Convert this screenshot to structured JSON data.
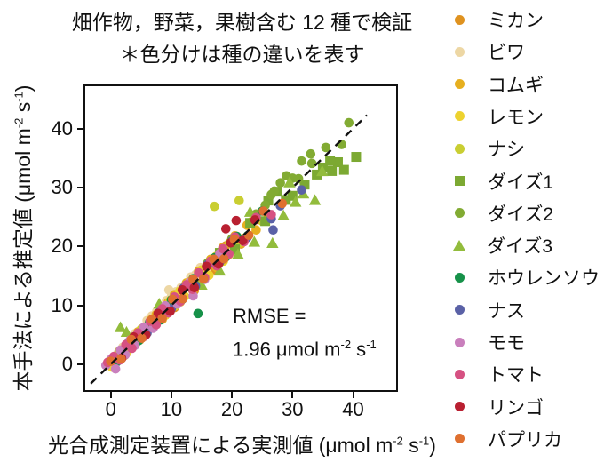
{
  "title": {
    "line1": "畑作物，野菜，果樹含む 12 種で検証",
    "line2": "＊色分けは種の違いを表す"
  },
  "axes": {
    "x_label": {
      "prefix": "光合成測定装置による実測値 (μmol m",
      "sup1": "-2",
      "mid": " s",
      "sup2": "-1",
      "suffix": ")"
    },
    "y_label": {
      "prefix": "本手法による推定値 (μmol m",
      "sup1": "-2",
      "mid": " s",
      "sup2": "-1",
      "suffix": ")"
    }
  },
  "annotation": {
    "line1": "RMSE =",
    "line2_prefix": "1.96 μmol m",
    "sup1": "-2",
    "mid": " s",
    "sup2": "-1"
  },
  "chart_data": {
    "type": "scatter",
    "title": "畑作物，野菜，果樹含む 12 種で検証 ＊色分けは種の違いを表す",
    "xlabel": "光合成測定装置による実測値 (μmol m⁻² s⁻¹)",
    "ylabel": "本手法による推定値 (μmol m⁻² s⁻¹)",
    "rmse_text": "RMSE = 1.96 μmol m⁻² s⁻¹",
    "xlim": [
      -4.5,
      47.4
    ],
    "ylim": [
      -4.7,
      47.5
    ],
    "xticks": [
      0,
      10,
      20,
      30,
      40
    ],
    "yticks": [
      0,
      10,
      20,
      30,
      40
    ],
    "grid": false,
    "legend_position": "right",
    "identity_line": {
      "from": [
        -3.3,
        -3.3
      ],
      "to": [
        42.3,
        42.3
      ],
      "style": "dashed",
      "color": "#111111"
    },
    "series": [
      {
        "key": "mikan",
        "name": "ミカン",
        "marker": "circle",
        "color": "#DF921F",
        "points": [
          [
            0.5,
            0.2
          ],
          [
            1.2,
            1.8
          ],
          [
            2.3,
            1.5
          ],
          [
            3.5,
            4.2
          ],
          [
            4.8,
            4.1
          ],
          [
            6.2,
            7.0
          ],
          [
            7.5,
            6.8
          ],
          [
            9.0,
            9.8
          ],
          [
            10.5,
            9.6
          ],
          [
            12.0,
            13.1
          ],
          [
            13.8,
            12.5
          ],
          [
            15.5,
            16.2
          ],
          [
            17.2,
            16.0
          ],
          [
            19.0,
            20.1
          ],
          [
            21.5,
            20.4
          ],
          [
            24.0,
            24.8
          ]
        ]
      },
      {
        "key": "biwa",
        "name": "ビワ",
        "marker": "circle",
        "color": "#EDD7A4",
        "points": [
          [
            1.0,
            1.6
          ],
          [
            2.0,
            2.9
          ],
          [
            3.0,
            3.4
          ],
          [
            4.0,
            5.2
          ],
          [
            5.0,
            5.8
          ],
          [
            6.0,
            7.4
          ],
          [
            6.8,
            8.2
          ],
          [
            7.6,
            9.0
          ],
          [
            8.4,
            9.6
          ],
          [
            9.2,
            10.8
          ],
          [
            10.0,
            11.5
          ],
          [
            10.8,
            12.3
          ],
          [
            11.6,
            13.0
          ],
          [
            12.4,
            13.6
          ],
          [
            13.2,
            14.8
          ],
          [
            14.0,
            15.2
          ],
          [
            14.8,
            16.4
          ],
          [
            15.6,
            16.0
          ],
          [
            9.6,
            12.6
          ],
          [
            11.7,
            11.5
          ]
        ]
      },
      {
        "key": "komugi",
        "name": "コムギ",
        "marker": "circle",
        "color": "#E6AF1F",
        "points": [
          [
            1.5,
            0.8
          ],
          [
            2.5,
            2.0
          ],
          [
            3.5,
            3.0
          ],
          [
            4.5,
            5.5
          ],
          [
            5.5,
            4.8
          ],
          [
            6.5,
            7.2
          ],
          [
            7.5,
            8.4
          ],
          [
            8.5,
            7.6
          ],
          [
            9.5,
            10.5
          ],
          [
            10.5,
            11.8
          ],
          [
            11.5,
            10.6
          ],
          [
            12.5,
            13.8
          ],
          [
            13.5,
            12.6
          ],
          [
            14.5,
            15.8
          ],
          [
            15.5,
            14.5
          ],
          [
            16.5,
            17.8
          ],
          [
            17.5,
            16.4
          ],
          [
            18.5,
            19.8
          ],
          [
            19.5,
            18.6
          ],
          [
            20.5,
            21.8
          ],
          [
            21.5,
            20.5
          ],
          [
            22.5,
            23.6
          ],
          [
            24.0,
            22.8
          ],
          [
            26.0,
            25.2
          ]
        ]
      },
      {
        "key": "lemon",
        "name": "レモン",
        "marker": "circle",
        "color": "#EDD22F",
        "points": [
          [
            0.2,
            -0.5
          ],
          [
            1.0,
            0.6
          ],
          [
            1.8,
            2.4
          ],
          [
            2.6,
            1.9
          ],
          [
            3.4,
            4.0
          ],
          [
            4.2,
            3.6
          ],
          [
            5.0,
            5.9
          ],
          [
            5.8,
            5.2
          ],
          [
            6.6,
            7.5
          ],
          [
            7.4,
            6.8
          ],
          [
            8.2,
            9.0
          ],
          [
            9.0,
            8.3
          ],
          [
            9.8,
            10.8
          ],
          [
            10.6,
            9.9
          ],
          [
            11.4,
            12.4
          ],
          [
            12.2,
            11.5
          ],
          [
            13.0,
            14.0
          ],
          [
            14.0,
            13.2
          ],
          [
            15.0,
            16.0
          ],
          [
            16.2,
            15.1
          ],
          [
            17.4,
            18.3
          ],
          [
            18.6,
            17.5
          ],
          [
            20.0,
            20.9
          ],
          [
            22.0,
            21.4
          ]
        ]
      },
      {
        "key": "nashi",
        "name": "ナシ",
        "marker": "circle",
        "color": "#C9CE32",
        "points": [
          [
            1.4,
            2.2
          ],
          [
            3.2,
            2.7
          ],
          [
            5.1,
            6.0
          ],
          [
            7.0,
            6.3
          ],
          [
            8.8,
            9.7
          ],
          [
            10.6,
            10.0
          ],
          [
            12.4,
            13.4
          ],
          [
            14.2,
            13.6
          ],
          [
            16.0,
            17.0
          ],
          [
            17.8,
            17.1
          ],
          [
            19.6,
            20.6
          ],
          [
            21.4,
            20.7
          ],
          [
            23.2,
            24.2
          ],
          [
            25.0,
            24.3
          ],
          [
            17.1,
            26.8
          ],
          [
            21.2,
            27.8
          ]
        ]
      },
      {
        "key": "daizu1",
        "name": "ダイズ1",
        "marker": "square",
        "color": "#7CA932",
        "points": [
          [
            18.0,
            18.9
          ],
          [
            20.5,
            19.5
          ],
          [
            23.0,
            24.0
          ],
          [
            25.5,
            24.3
          ],
          [
            26.0,
            27.8
          ],
          [
            27.5,
            29.3
          ],
          [
            28.9,
            27.9
          ],
          [
            30.0,
            28.6
          ],
          [
            32.0,
            30.5
          ],
          [
            34.0,
            32.2
          ],
          [
            35.0,
            33.4
          ],
          [
            36.5,
            32.8
          ],
          [
            37.5,
            34.3
          ],
          [
            38.5,
            33.0
          ],
          [
            40.5,
            35.2
          ],
          [
            36.2,
            34.5
          ]
        ]
      },
      {
        "key": "daizu2",
        "name": "ダイズ2",
        "marker": "circle",
        "color": "#82AB33",
        "points": [
          [
            12.0,
            12.8
          ],
          [
            14.0,
            13.5
          ],
          [
            16.0,
            17.2
          ],
          [
            18.0,
            17.3
          ],
          [
            20.0,
            21.3
          ],
          [
            22.0,
            21.2
          ],
          [
            24.0,
            25.5
          ],
          [
            25.5,
            27.0
          ],
          [
            27.0,
            29.4
          ],
          [
            28.0,
            30.8
          ],
          [
            29.0,
            32.0
          ],
          [
            30.0,
            31.6
          ],
          [
            31.0,
            31.5
          ],
          [
            31.5,
            34.5
          ],
          [
            33.0,
            35.7
          ],
          [
            33.2,
            34.1
          ],
          [
            35.5,
            36.8
          ],
          [
            38.1,
            37.3
          ],
          [
            39.3,
            41.0
          ],
          [
            26.5,
            28.8
          ]
        ]
      },
      {
        "key": "daizu3",
        "name": "ダイズ3",
        "marker": "triangle",
        "color": "#92BC3C",
        "points": [
          [
            1.6,
            6.2
          ],
          [
            2.6,
            5.4
          ],
          [
            8.0,
            10.2
          ],
          [
            15.0,
            13.4
          ],
          [
            18.0,
            15.8
          ],
          [
            21.0,
            18.6
          ],
          [
            23.7,
            20.7
          ],
          [
            26.7,
            20.5
          ],
          [
            28.5,
            25.2
          ],
          [
            30.5,
            27.5
          ],
          [
            33.7,
            27.8
          ],
          [
            34.9,
            32.7
          ],
          [
            29.5,
            30.8
          ],
          [
            31.8,
            28.9
          ],
          [
            23.0,
            25.8
          ]
        ]
      },
      {
        "key": "hourensou",
        "name": "ホウレンソウ",
        "marker": "circle",
        "color": "#169149",
        "points": [
          [
            1.0,
            0.4
          ],
          [
            2.8,
            3.5
          ],
          [
            4.6,
            4.0
          ],
          [
            6.4,
            7.1
          ],
          [
            8.2,
            7.5
          ],
          [
            10.0,
            10.9
          ],
          [
            11.8,
            11.0
          ],
          [
            13.6,
            14.5
          ],
          [
            15.4,
            14.6
          ],
          [
            17.2,
            18.1
          ],
          [
            19.0,
            18.2
          ],
          [
            20.8,
            21.7
          ],
          [
            22.6,
            21.8
          ],
          [
            14.4,
            8.6
          ],
          [
            25.0,
            26.0
          ]
        ]
      },
      {
        "key": "nasu",
        "name": "ナス",
        "marker": "circle",
        "color": "#5A61A6",
        "points": [
          [
            0.3,
            0.9
          ],
          [
            2.0,
            1.4
          ],
          [
            4.0,
            4.7
          ],
          [
            6.0,
            5.3
          ],
          [
            8.0,
            8.8
          ],
          [
            10.0,
            9.4
          ],
          [
            12.0,
            12.9
          ],
          [
            14.0,
            13.3
          ],
          [
            16.0,
            16.9
          ],
          [
            18.0,
            17.4
          ],
          [
            20.0,
            20.9
          ],
          [
            22.5,
            21.5
          ],
          [
            26.5,
            24.7
          ],
          [
            26.8,
            22.8
          ],
          [
            28.0,
            26.9
          ],
          [
            31.5,
            29.6
          ]
        ]
      },
      {
        "key": "momo",
        "name": "モモ",
        "marker": "circle",
        "color": "#C97FBC",
        "points": [
          [
            -0.8,
            -0.2
          ],
          [
            0.0,
            0.8
          ],
          [
            0.8,
            -0.8
          ],
          [
            1.6,
            2.4
          ],
          [
            2.4,
            1.6
          ],
          [
            3.2,
            4.1
          ],
          [
            4.0,
            3.2
          ],
          [
            5.5,
            6.3
          ],
          [
            7.0,
            6.1
          ],
          [
            9.0,
            9.9
          ],
          [
            11.0,
            10.2
          ],
          [
            13.0,
            13.9
          ],
          [
            13.6,
            11.6
          ],
          [
            15.5,
            14.4
          ],
          [
            18.0,
            18.8
          ]
        ]
      },
      {
        "key": "tomato",
        "name": "トマト",
        "marker": "circle",
        "color": "#D65182",
        "points": [
          [
            -0.5,
            0.3
          ],
          [
            0.5,
            1.3
          ],
          [
            1.5,
            0.7
          ],
          [
            2.5,
            3.3
          ],
          [
            3.5,
            2.7
          ],
          [
            4.5,
            5.3
          ],
          [
            5.5,
            4.7
          ],
          [
            6.5,
            7.3
          ],
          [
            7.5,
            6.7
          ],
          [
            8.5,
            9.4
          ],
          [
            9.5,
            8.7
          ],
          [
            10.5,
            11.4
          ],
          [
            11.5,
            10.7
          ],
          [
            12.5,
            13.5
          ],
          [
            13.5,
            12.7
          ],
          [
            14.5,
            15.5
          ],
          [
            15.5,
            14.7
          ],
          [
            16.5,
            17.5
          ],
          [
            17.5,
            16.7
          ],
          [
            18.5,
            19.6
          ],
          [
            19.5,
            18.7
          ],
          [
            20.5,
            21.6
          ],
          [
            22.0,
            20.8
          ],
          [
            24.0,
            24.9
          ],
          [
            26.5,
            25.4
          ]
        ]
      },
      {
        "key": "ringo",
        "name": "リンゴ",
        "marker": "circle",
        "color": "#B92031",
        "points": [
          [
            1.8,
            1.0
          ],
          [
            3.8,
            4.6
          ],
          [
            5.8,
            5.0
          ],
          [
            7.8,
            8.6
          ],
          [
            9.8,
            9.0
          ],
          [
            11.8,
            12.6
          ],
          [
            13.8,
            13.0
          ],
          [
            15.8,
            16.6
          ],
          [
            17.8,
            17.0
          ],
          [
            19.8,
            20.6
          ],
          [
            20.7,
            24.4
          ],
          [
            21.8,
            21.0
          ],
          [
            23.8,
            24.5
          ],
          [
            19.0,
            23.0
          ]
        ]
      },
      {
        "key": "papurika",
        "name": "パプリカ",
        "marker": "circle",
        "color": "#DF7030",
        "points": [
          [
            0.0,
            0.5
          ],
          [
            1.7,
            0.9
          ],
          [
            3.4,
            4.2
          ],
          [
            5.1,
            4.4
          ],
          [
            6.8,
            7.6
          ],
          [
            8.5,
            7.8
          ],
          [
            10.2,
            11.0
          ],
          [
            11.9,
            11.1
          ],
          [
            13.6,
            14.4
          ],
          [
            15.3,
            14.5
          ],
          [
            17.0,
            17.8
          ],
          [
            18.7,
            17.9
          ],
          [
            20.4,
            21.2
          ],
          [
            22.8,
            21.9
          ],
          [
            25.2,
            26.0
          ],
          [
            28.3,
            27.3
          ]
        ]
      }
    ]
  }
}
